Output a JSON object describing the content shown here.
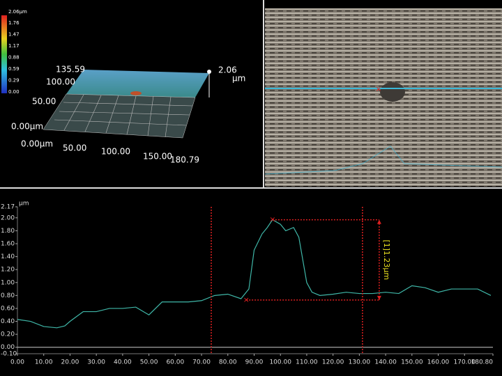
{
  "colorbar": {
    "title": "2.06µm",
    "ticks": [
      "1.76",
      "1.47",
      "1.17",
      "0.88",
      "0.59",
      "0.29",
      "0.00"
    ]
  },
  "view3d": {
    "y_max": "135.59",
    "y_mid": "100.00",
    "y_low": "50.00",
    "z_origin": "0.00µm",
    "x_origin": "0.00µm",
    "x_50": "50.00",
    "x_100": "100.00",
    "x_150": "150.00",
    "x_max": "180.79",
    "z_max": "2.06",
    "z_unit": "µm"
  },
  "chart_data": {
    "type": "line",
    "y_label": "µm",
    "x": [
      0,
      5,
      10,
      15,
      18,
      20,
      25,
      30,
      35,
      40,
      45,
      50,
      55,
      60,
      65,
      70,
      75,
      80,
      85,
      88,
      90,
      93,
      95,
      97,
      100,
      102,
      105,
      107,
      110,
      112,
      115,
      120,
      125,
      130,
      135,
      140,
      145,
      150,
      155,
      160,
      165,
      170,
      175,
      180
    ],
    "series": [
      {
        "color": "#3fb7a8",
        "values": [
          0.43,
          0.4,
          0.32,
          0.3,
          0.33,
          0.4,
          0.55,
          0.55,
          0.6,
          0.6,
          0.62,
          0.5,
          0.7,
          0.7,
          0.7,
          0.72,
          0.8,
          0.82,
          0.75,
          0.9,
          1.5,
          1.75,
          1.85,
          1.97,
          1.9,
          1.8,
          1.85,
          1.7,
          1.0,
          0.85,
          0.8,
          0.82,
          0.85,
          0.83,
          0.83,
          0.85,
          0.83,
          0.95,
          0.92,
          0.85,
          0.9,
          0.9,
          0.9,
          0.8
        ]
      }
    ],
    "cursors": [
      73.7,
      131.2
    ],
    "markers": [
      {
        "x": 87,
        "y": 0.73
      },
      {
        "x": 97,
        "y": 1.97
      }
    ],
    "measure_label": "[1]1.23µm",
    "xlim": [
      0,
      180.8
    ],
    "ylim": [
      -0.1,
      2.17
    ],
    "xticks": [
      {
        "value": 0,
        "label": "0.00"
      },
      {
        "value": 10,
        "label": "10.00"
      },
      {
        "value": 20,
        "label": "20.00"
      },
      {
        "value": 30,
        "label": "30.00"
      },
      {
        "value": 40,
        "label": "40.00"
      },
      {
        "value": 50,
        "label": "50.00"
      },
      {
        "value": 60,
        "label": "60.00"
      },
      {
        "value": 70,
        "label": "70.00"
      },
      {
        "value": 80,
        "label": "80.00"
      },
      {
        "value": 90,
        "label": "90.00"
      },
      {
        "value": 100,
        "label": "100.00"
      },
      {
        "value": 110,
        "label": "110.00"
      },
      {
        "value": 120,
        "label": "120.00"
      },
      {
        "value": 130,
        "label": "130.00"
      },
      {
        "value": 140,
        "label": "140.00"
      },
      {
        "value": 150,
        "label": "150.00"
      },
      {
        "value": 160,
        "label": "160.00"
      },
      {
        "value": 170,
        "label": "170.00"
      },
      {
        "value": 180.8,
        "label": "180.80"
      }
    ],
    "yticks": [
      {
        "value": -0.1,
        "label": "-0.10"
      },
      {
        "value": 0,
        "label": "0.00"
      },
      {
        "value": 0.2,
        "label": "0.20"
      },
      {
        "value": 0.4,
        "label": "0.40"
      },
      {
        "value": 0.6,
        "label": "0.60"
      },
      {
        "value": 0.8,
        "label": "0.80"
      },
      {
        "value": 1,
        "label": "1.00"
      },
      {
        "value": 1.2,
        "label": "1.20"
      },
      {
        "value": 1.4,
        "label": "1.40"
      },
      {
        "value": 1.6,
        "label": "1.60"
      },
      {
        "value": 1.8,
        "label": "1.80"
      },
      {
        "value": 2,
        "label": "2.00"
      },
      {
        "value": 2.17,
        "label": "2.17"
      }
    ]
  }
}
